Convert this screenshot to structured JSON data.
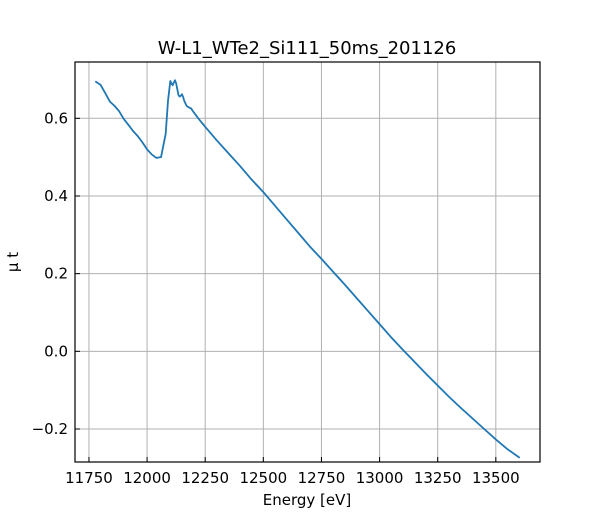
{
  "chart_data": {
    "type": "line",
    "title": "W-L1_WTe2_Si111_50ms_201126",
    "xlabel": "Energy [eV]",
    "ylabel": "μ t",
    "xlim": [
      11690,
      13690
    ],
    "ylim": [
      -0.285,
      0.745
    ],
    "grid": true,
    "xticks": [
      11750,
      12000,
      12250,
      12500,
      12750,
      13000,
      13250,
      13500
    ],
    "xtick_labels": [
      "11750",
      "12000",
      "12250",
      "12500",
      "12750",
      "13000",
      "13250",
      "13500"
    ],
    "yticks": [
      -0.2,
      0.0,
      0.2,
      0.4,
      0.6
    ],
    "ytick_labels": [
      "−0.2",
      "0.0",
      "0.2",
      "0.4",
      "0.6"
    ],
    "series": [
      {
        "color": "#1f77b4",
        "x": [
          11780,
          11800,
          11820,
          11840,
          11860,
          11880,
          11900,
          11920,
          11940,
          11960,
          11980,
          12000,
          12020,
          12040,
          12060,
          12080,
          12090,
          12100,
          12105,
          12110,
          12115,
          12120,
          12125,
          12130,
          12135,
          12140,
          12145,
          12150,
          12155,
          12160,
          12170,
          12180,
          12190,
          12200,
          12220,
          12250,
          12300,
          12350,
          12400,
          12450,
          12500,
          12550,
          12600,
          12650,
          12700,
          12750,
          12800,
          12850,
          12900,
          12950,
          13000,
          13050,
          13100,
          13150,
          13200,
          13250,
          13300,
          13350,
          13400,
          13450,
          13500,
          13550,
          13600
        ],
        "y": [
          0.694,
          0.686,
          0.665,
          0.643,
          0.632,
          0.618,
          0.598,
          0.583,
          0.567,
          0.554,
          0.538,
          0.52,
          0.507,
          0.498,
          0.5,
          0.56,
          0.645,
          0.696,
          0.69,
          0.685,
          0.692,
          0.698,
          0.69,
          0.675,
          0.66,
          0.656,
          0.658,
          0.662,
          0.655,
          0.645,
          0.632,
          0.628,
          0.625,
          0.616,
          0.6,
          0.578,
          0.543,
          0.51,
          0.477,
          0.442,
          0.41,
          0.375,
          0.34,
          0.305,
          0.27,
          0.238,
          0.205,
          0.172,
          0.138,
          0.104,
          0.07,
          0.036,
          0.004,
          -0.027,
          -0.058,
          -0.088,
          -0.118,
          -0.146,
          -0.173,
          -0.2,
          -0.227,
          -0.252,
          -0.273
        ]
      }
    ]
  }
}
